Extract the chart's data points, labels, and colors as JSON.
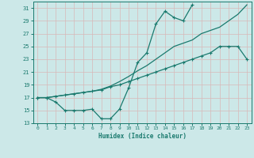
{
  "title": "",
  "xlabel": "Humidex (Indice chaleur)",
  "ylabel": "",
  "background_color": "#cce8e8",
  "grid_color": "#b0d8d8",
  "line_color": "#1a7a6e",
  "xlim": [
    -0.5,
    23.5
  ],
  "ylim": [
    13,
    32
  ],
  "yticks": [
    13,
    15,
    17,
    19,
    21,
    23,
    25,
    27,
    29,
    31
  ],
  "xticks": [
    0,
    1,
    2,
    3,
    4,
    5,
    6,
    7,
    8,
    9,
    10,
    11,
    12,
    13,
    14,
    15,
    16,
    17,
    18,
    19,
    20,
    21,
    22,
    23
  ],
  "line1_x": [
    0,
    1,
    2,
    3,
    4,
    5,
    6,
    7,
    8,
    9,
    10,
    11,
    12,
    13,
    14,
    15,
    16,
    17,
    18,
    19,
    20,
    21,
    22,
    23
  ],
  "line1_y": [
    17,
    17,
    16.3,
    15,
    15,
    15,
    15.2,
    13.7,
    13.7,
    15.2,
    18.5,
    22.5,
    24.0,
    28.5,
    30.5,
    29.5,
    29.0,
    31.5,
    null,
    null,
    null,
    null,
    null,
    null
  ],
  "line2_x": [
    0,
    1,
    2,
    3,
    4,
    5,
    6,
    7,
    8,
    9,
    10,
    11,
    12,
    13,
    14,
    15,
    16,
    17,
    18,
    19,
    20,
    21,
    22,
    23
  ],
  "line2_y": [
    17.0,
    17.0,
    17.2,
    17.4,
    17.6,
    17.8,
    18.0,
    18.2,
    18.7,
    19.0,
    19.5,
    20.0,
    20.5,
    21.0,
    21.5,
    22.0,
    22.5,
    23.0,
    23.5,
    24.0,
    25.0,
    25.0,
    25.0,
    23.0
  ],
  "line3_x": [
    0,
    1,
    2,
    3,
    4,
    5,
    6,
    7,
    8,
    9,
    10,
    11,
    12,
    13,
    14,
    15,
    16,
    17,
    18,
    19,
    20,
    21,
    22,
    23
  ],
  "line3_y": [
    17.0,
    17.0,
    17.2,
    17.4,
    17.6,
    17.8,
    18.0,
    18.3,
    18.8,
    19.5,
    20.3,
    21.2,
    22.0,
    23.0,
    24.0,
    25.0,
    25.5,
    26.0,
    27.0,
    27.5,
    28.0,
    29.0,
    30.0,
    31.5
  ]
}
